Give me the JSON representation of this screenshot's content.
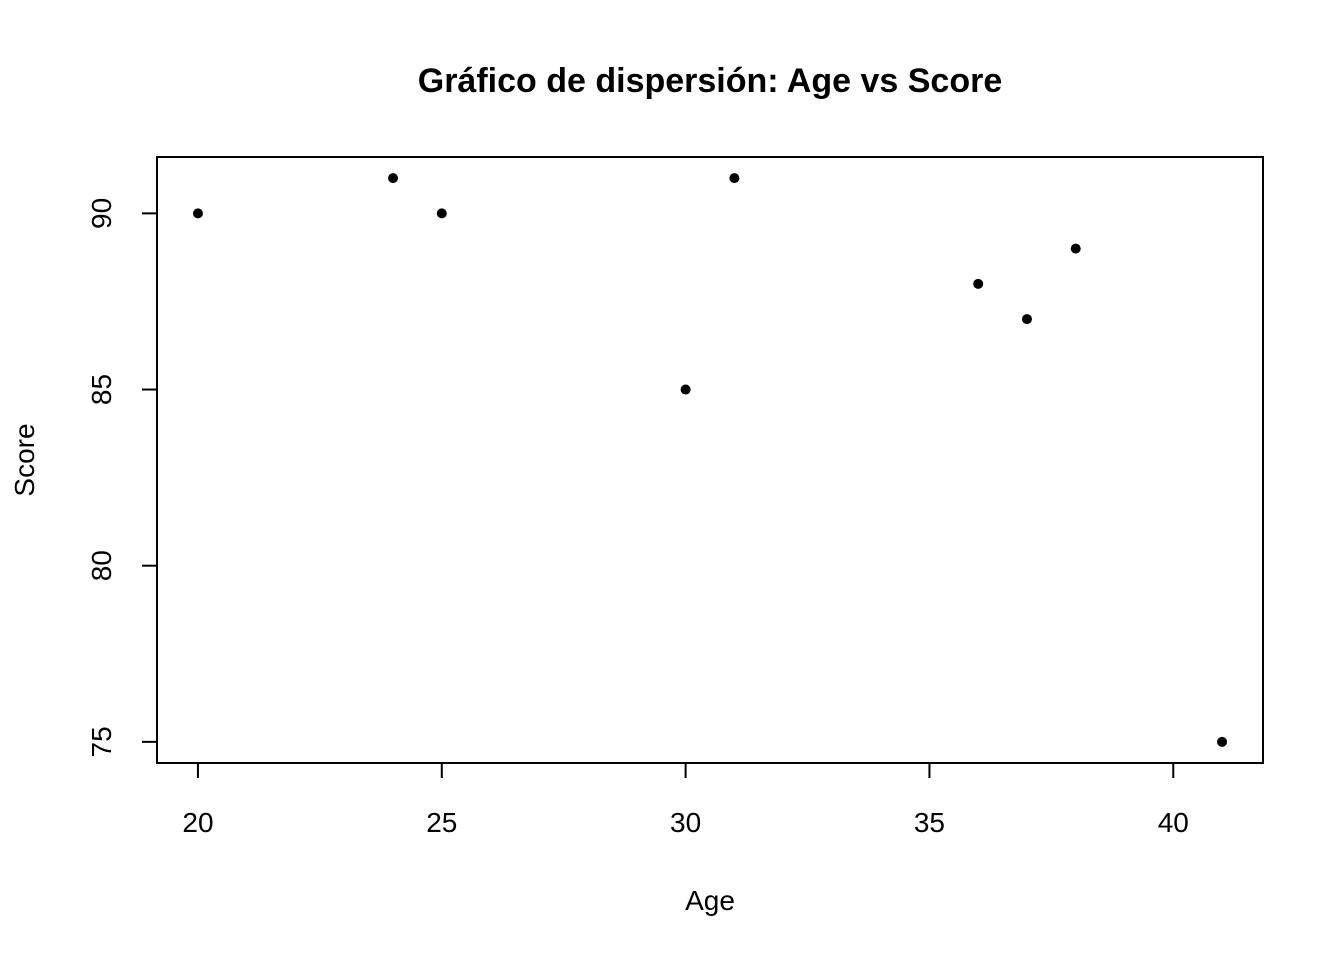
{
  "chart_data": {
    "type": "scatter",
    "title": "Gráfico de dispersión: Age vs Score",
    "xlabel": "Age",
    "ylabel": "Score",
    "x": [
      20,
      24,
      25,
      30,
      31,
      36,
      37,
      38,
      41
    ],
    "y": [
      90,
      91,
      90,
      85,
      91,
      88,
      87,
      89,
      75
    ],
    "xlim": [
      19.16,
      41.84
    ],
    "ylim": [
      74.4,
      91.6
    ],
    "xticks": [
      20,
      25,
      30,
      35,
      40
    ],
    "yticks": [
      75,
      80,
      85,
      90
    ],
    "xtick_labels": [
      "20",
      "25",
      "30",
      "35",
      "40"
    ],
    "ytick_labels": [
      "75",
      "80",
      "85",
      "90"
    ],
    "grid": false,
    "point_color": "#000000"
  }
}
